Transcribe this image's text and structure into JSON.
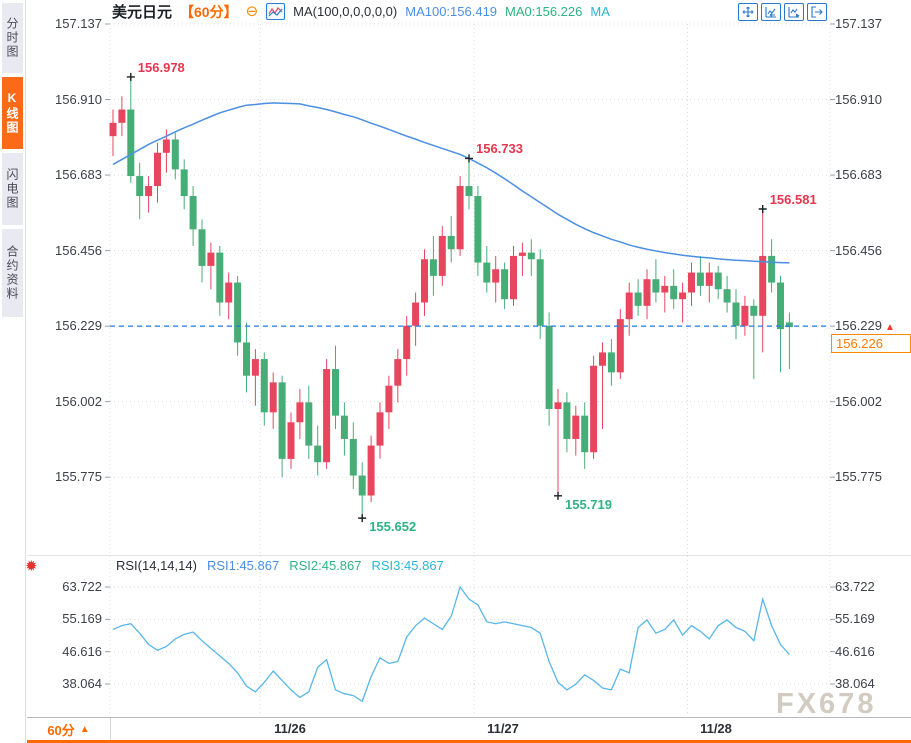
{
  "sidebar": {
    "tabs": [
      {
        "label": "分时图",
        "active": false
      },
      {
        "label": "K线图",
        "active": true
      },
      {
        "label": "闪电图",
        "active": false
      },
      {
        "label": "合约资料",
        "active": false
      }
    ]
  },
  "header": {
    "symbol": "美元日元",
    "interval": "【60分】",
    "collapse_icon": "⊖",
    "ma_formula": "MA(100,0,0,0,0,0)",
    "ma100_label": "MA100:156.419",
    "ma0_label": "MA0:156.226",
    "ma_extra_label": "MA"
  },
  "toolbar": {
    "icons": [
      "crosshair-move-icon",
      "chart-start-icon",
      "chart-play-icon",
      "exit-chart-icon"
    ]
  },
  "price_axis": {
    "ticks": [
      "157.137",
      "156.910",
      "156.683",
      "156.456",
      "156.229",
      "156.002",
      "155.775"
    ],
    "current_tick": "156.229",
    "arrow": "▲",
    "current_price": "156.226"
  },
  "rsi_panel": {
    "formula": "RSI(14,14,14)",
    "rsi1_label": "RSI1:45.867",
    "rsi2_label": "RSI2:45.867",
    "rsi3_label": "RSI3:45.867",
    "ticks": [
      "63.722",
      "55.169",
      "46.616",
      "38.064"
    ]
  },
  "time_axis": {
    "interval_label": "60分",
    "dropdown_arrow": "▲",
    "dates": [
      "11/26",
      "11/27",
      "11/28"
    ]
  },
  "watermark": "FX678",
  "colors": {
    "up": "#e8465f",
    "down": "#47ad76",
    "ma_line": "#4b8fe2",
    "rsi_line": "#58b7e8",
    "current_price_line": "#1f7ce0",
    "accent_orange": "#ff6a00",
    "annotation_high": "#e8354e",
    "annotation_low": "#2db482"
  },
  "chart_data": {
    "type": "candlestick",
    "title": "美元日元 60分 K线图 with MA(100) and RSI(14,14,14)",
    "main": {
      "y_ticks": [
        157.137,
        156.91,
        156.683,
        156.456,
        156.229,
        156.002,
        155.775
      ],
      "ylim": [
        155.775,
        157.137
      ],
      "current_price": 156.226,
      "current_price_level": 156.229,
      "ma100_last": 156.419,
      "day_start_indices": [
        17,
        41,
        65
      ],
      "candles_ohlc": [
        [
          156.8,
          156.88,
          156.74,
          156.84
        ],
        [
          156.84,
          156.92,
          156.8,
          156.88
        ],
        [
          156.88,
          156.978,
          156.66,
          156.68
        ],
        [
          156.68,
          156.72,
          156.55,
          156.62
        ],
        [
          156.62,
          156.68,
          156.57,
          156.65
        ],
        [
          156.65,
          156.78,
          156.6,
          156.75
        ],
        [
          156.75,
          156.82,
          156.69,
          156.79
        ],
        [
          156.79,
          156.81,
          156.67,
          156.7
        ],
        [
          156.7,
          156.73,
          156.58,
          156.62
        ],
        [
          156.62,
          156.65,
          156.47,
          156.52
        ],
        [
          156.52,
          156.55,
          156.36,
          156.41
        ],
        [
          156.41,
          156.48,
          156.34,
          156.45
        ],
        [
          156.45,
          156.47,
          156.26,
          156.3
        ],
        [
          156.3,
          156.39,
          156.25,
          156.36
        ],
        [
          156.36,
          156.38,
          156.14,
          156.18
        ],
        [
          156.18,
          156.24,
          156.03,
          156.08
        ],
        [
          156.08,
          156.16,
          155.99,
          156.13
        ],
        [
          156.13,
          156.15,
          155.93,
          155.97
        ],
        [
          155.97,
          156.09,
          155.92,
          156.06
        ],
        [
          156.06,
          156.08,
          155.775,
          155.83
        ],
        [
          155.83,
          155.97,
          155.8,
          155.94
        ],
        [
          155.94,
          156.04,
          155.89,
          156.0
        ],
        [
          156.0,
          156.05,
          155.83,
          155.87
        ],
        [
          155.87,
          155.93,
          155.78,
          155.82
        ],
        [
          155.82,
          156.13,
          155.8,
          156.1
        ],
        [
          156.1,
          156.17,
          155.92,
          155.96
        ],
        [
          155.96,
          156.0,
          155.84,
          155.89
        ],
        [
          155.89,
          155.94,
          155.74,
          155.78
        ],
        [
          155.78,
          155.82,
          155.652,
          155.72
        ],
        [
          155.72,
          155.9,
          155.7,
          155.87
        ],
        [
          155.87,
          156.0,
          155.83,
          155.97
        ],
        [
          155.97,
          156.08,
          155.92,
          156.05
        ],
        [
          156.05,
          156.16,
          156.0,
          156.13
        ],
        [
          156.13,
          156.26,
          156.08,
          156.23
        ],
        [
          156.23,
          156.33,
          156.17,
          156.3
        ],
        [
          156.3,
          156.46,
          156.26,
          156.43
        ],
        [
          156.43,
          156.5,
          156.32,
          156.38
        ],
        [
          156.38,
          156.53,
          156.35,
          156.5
        ],
        [
          156.5,
          156.56,
          156.42,
          156.46
        ],
        [
          156.46,
          156.68,
          156.44,
          156.65
        ],
        [
          156.65,
          156.733,
          156.58,
          156.62
        ],
        [
          156.62,
          156.65,
          156.38,
          156.42
        ],
        [
          156.42,
          156.47,
          156.33,
          156.36
        ],
        [
          156.36,
          156.44,
          156.3,
          156.4
        ],
        [
          156.4,
          156.42,
          156.28,
          156.31
        ],
        [
          156.31,
          156.47,
          156.29,
          156.44
        ],
        [
          156.44,
          156.48,
          156.38,
          156.45
        ],
        [
          156.45,
          156.49,
          156.38,
          156.43
        ],
        [
          156.43,
          156.46,
          156.19,
          156.23
        ],
        [
          156.23,
          156.27,
          155.93,
          155.98
        ],
        [
          155.98,
          156.04,
          155.719,
          156.0
        ],
        [
          156.0,
          156.03,
          155.85,
          155.89
        ],
        [
          155.89,
          155.99,
          155.84,
          155.96
        ],
        [
          155.96,
          156.0,
          155.8,
          155.85
        ],
        [
          155.85,
          156.14,
          155.83,
          156.11
        ],
        [
          156.11,
          156.18,
          155.92,
          156.15
        ],
        [
          156.15,
          156.19,
          156.05,
          156.09
        ],
        [
          156.09,
          156.28,
          156.07,
          156.25
        ],
        [
          156.25,
          156.36,
          156.2,
          156.33
        ],
        [
          156.33,
          156.37,
          156.26,
          156.29
        ],
        [
          156.29,
          156.4,
          156.25,
          156.37
        ],
        [
          156.37,
          156.43,
          156.3,
          156.33
        ],
        [
          156.33,
          156.38,
          156.27,
          156.35
        ],
        [
          156.35,
          156.4,
          156.28,
          156.31
        ],
        [
          156.31,
          156.36,
          156.24,
          156.33
        ],
        [
          156.33,
          156.42,
          156.29,
          156.39
        ],
        [
          156.39,
          156.44,
          156.32,
          156.35
        ],
        [
          156.35,
          156.42,
          156.3,
          156.39
        ],
        [
          156.39,
          156.41,
          156.31,
          156.34
        ],
        [
          156.34,
          156.38,
          156.27,
          156.3
        ],
        [
          156.3,
          156.34,
          156.19,
          156.23
        ],
        [
          156.23,
          156.32,
          156.2,
          156.29
        ],
        [
          156.29,
          156.31,
          156.07,
          156.26
        ],
        [
          156.26,
          156.581,
          156.15,
          156.44
        ],
        [
          156.44,
          156.49,
          156.33,
          156.36
        ],
        [
          156.36,
          156.38,
          156.09,
          156.22
        ],
        [
          156.24,
          156.27,
          156.1,
          156.226
        ]
      ],
      "ma100": [
        156.715,
        156.73,
        156.745,
        156.76,
        156.775,
        156.788,
        156.8,
        156.813,
        156.825,
        156.836,
        156.848,
        156.859,
        156.87,
        156.878,
        156.886,
        156.893,
        156.895,
        156.898,
        156.9,
        156.899,
        156.898,
        156.897,
        156.891,
        156.886,
        156.88,
        156.873,
        156.865,
        156.858,
        156.849,
        156.839,
        156.83,
        156.82,
        156.81,
        156.8,
        156.791,
        156.781,
        156.772,
        156.763,
        156.754,
        156.745,
        156.733,
        156.719,
        156.705,
        156.689,
        156.672,
        156.654,
        156.635,
        156.618,
        156.6,
        156.583,
        156.565,
        156.55,
        156.535,
        156.522,
        156.51,
        156.5,
        156.49,
        156.482,
        156.473,
        156.466,
        156.46,
        156.455,
        156.45,
        156.446,
        156.442,
        156.439,
        156.436,
        156.434,
        156.431,
        156.429,
        156.427,
        156.426,
        156.424,
        156.423,
        156.421,
        156.42,
        156.419
      ],
      "annotations": [
        {
          "index": 2,
          "price": 156.978,
          "label": "156.978",
          "kind": "high"
        },
        {
          "index": 40,
          "price": 156.733,
          "label": "156.733",
          "kind": "high"
        },
        {
          "index": 73,
          "price": 156.581,
          "label": "156.581",
          "kind": "high"
        },
        {
          "index": 28,
          "price": 155.652,
          "label": "155.652",
          "kind": "low"
        },
        {
          "index": 50,
          "price": 155.719,
          "label": "155.719",
          "kind": "low"
        }
      ]
    },
    "rsi": {
      "y_ticks": [
        63.722,
        55.169,
        46.616,
        38.064
      ],
      "values": [
        52.5,
        53.5,
        54.0,
        51.5,
        48.5,
        47.0,
        48.0,
        50.0,
        51.2,
        51.8,
        49.5,
        47.5,
        45.5,
        43.5,
        41.0,
        37.5,
        36.0,
        38.5,
        41.5,
        39.0,
        36.5,
        34.5,
        36.0,
        42.5,
        44.5,
        36.5,
        35.5,
        35.0,
        33.5,
        40.0,
        45.0,
        43.5,
        44.0,
        50.5,
        53.5,
        55.5,
        54.0,
        52.5,
        56.0,
        63.722,
        60.5,
        59.0,
        54.5,
        54.0,
        54.5,
        54.0,
        53.5,
        53.0,
        51.5,
        44.0,
        38.5,
        36.5,
        38.0,
        40.5,
        39.0,
        37.0,
        36.5,
        42.0,
        41.0,
        53.0,
        55.0,
        51.5,
        52.5,
        55.0,
        51.0,
        53.5,
        52.0,
        50.0,
        53.5,
        55.0,
        53.0,
        52.0,
        49.5,
        60.5,
        53.5,
        48.5,
        45.867
      ]
    }
  }
}
